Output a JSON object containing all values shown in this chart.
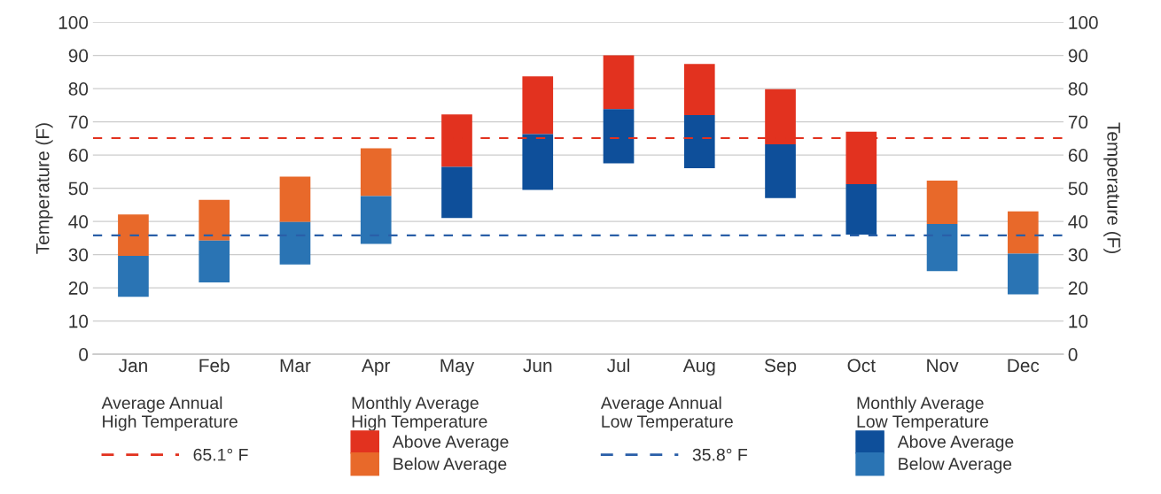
{
  "chart_data": {
    "type": "bar",
    "categories": [
      "Jan",
      "Feb",
      "Mar",
      "Apr",
      "May",
      "Jun",
      "Jul",
      "Aug",
      "Sep",
      "Oct",
      "Nov",
      "Dec"
    ],
    "series": [
      {
        "name": "Above Average",
        "color": "#e2321f",
        "base": [
          null,
          null,
          null,
          null,
          56.4,
          66.3,
          73.8,
          72,
          63.2,
          51.2,
          null,
          null
        ],
        "values": [
          null,
          null,
          null,
          null,
          15.8,
          17.4,
          16.2,
          15.4,
          16.6,
          15.8,
          null,
          null
        ]
      },
      {
        "name": "Below Average",
        "color": "#e8692a",
        "base": [
          29.6,
          34.2,
          39.8,
          47.6,
          null,
          null,
          null,
          null,
          null,
          null,
          39.2,
          30.3
        ],
        "values": [
          12.5,
          12.3,
          13.7,
          14.4,
          null,
          null,
          null,
          null,
          null,
          null,
          13.1,
          12.7
        ]
      },
      {
        "name": "Above Average",
        "color": "#0e4f9a",
        "base": [
          null,
          null,
          null,
          null,
          41,
          49.5,
          57.5,
          56,
          47,
          36,
          null,
          null
        ],
        "values": [
          null,
          null,
          null,
          null,
          15.4,
          16.8,
          16.3,
          16,
          16.2,
          15.2,
          null,
          null
        ]
      },
      {
        "name": "Below Average",
        "color": "#2a74b4",
        "base": [
          17.3,
          21.6,
          27,
          33.2,
          null,
          null,
          null,
          null,
          null,
          null,
          25,
          18
        ],
        "values": [
          12.3,
          12.6,
          12.8,
          14.4,
          null,
          null,
          null,
          null,
          null,
          null,
          14.2,
          12.3
        ]
      }
    ],
    "ylim": [
      0,
      100
    ],
    "yticks": [
      0,
      10,
      20,
      30,
      40,
      50,
      60,
      70,
      80,
      90,
      100
    ],
    "y2lim": [
      0,
      100
    ],
    "y2ticks": [
      0,
      10,
      20,
      30,
      40,
      50,
      60,
      70,
      80,
      90,
      100
    ],
    "ylabel": "Temperature (F)",
    "y2label": "Temperature (F)",
    "ref_lines": [
      {
        "axis": "y",
        "value": 65.1,
        "label": "65.1° F",
        "color": "#e2321f",
        "line_style": "dashed"
      },
      {
        "axis": "y",
        "value": 35.8,
        "label": "35.8° F",
        "color": "#2a5fa8",
        "line_style": "dashed"
      }
    ],
    "annotations": [
      "Average Annual\nHigh Temperature",
      "Monthly Average\nHigh Temperature",
      "Average Annual\nLow Temperature",
      "Monthly Average\nLow Temperature"
    ],
    "grid": "y",
    "legend": "bottom"
  }
}
